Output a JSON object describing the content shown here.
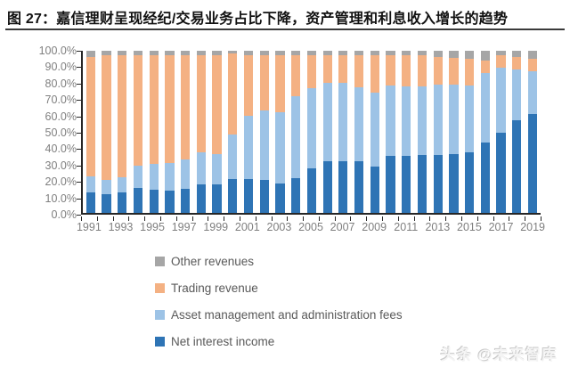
{
  "title": "图 27：嘉信理财呈现经纪/交易业务占比下降，资产管理和利息收入增长的趋势",
  "watermark": "头条 @未来智库",
  "colors": {
    "net_interest_income": "#2E74B5",
    "asset_management_fees": "#9DC3E6",
    "trading_revenue": "#F4B183",
    "other_revenues": "#A6A6A6",
    "axis": "#262626",
    "tick_label": "#7F7F7F",
    "legend_text": "#595959",
    "title_text": "#111111"
  },
  "chart_data": {
    "type": "bar",
    "variant": "100-percent-stacked-column",
    "title": "",
    "xlabel": "",
    "ylabel": "",
    "ylim": [
      0,
      100
    ],
    "grid": false,
    "legend_position": "bottom-left",
    "y_ticks": [
      "100.0%",
      "90.0%",
      "80.0%",
      "70.0%",
      "60.0%",
      "50.0%",
      "40.0%",
      "30.0%",
      "20.0%",
      "10.0%",
      "0.0%"
    ],
    "y_tick_values": [
      100,
      90,
      80,
      70,
      60,
      50,
      40,
      30,
      20,
      10,
      0
    ],
    "categories": [
      1991,
      1992,
      1993,
      1994,
      1995,
      1996,
      1997,
      1998,
      1999,
      2000,
      2001,
      2002,
      2003,
      2004,
      2005,
      2006,
      2007,
      2008,
      2009,
      2010,
      2011,
      2012,
      2013,
      2014,
      2015,
      2016,
      2017,
      2018,
      2019
    ],
    "x_tick_labels": [
      "1991",
      "1993",
      "1995",
      "1997",
      "1999",
      "2001",
      "2003",
      "2005",
      "2007",
      "2009",
      "2011",
      "2013",
      "2015",
      "2017",
      "2019"
    ],
    "series": [
      {
        "name": "Net interest income",
        "color": "#2E74B5",
        "values": [
          12.5,
          11.5,
          12.5,
          15.5,
          14.5,
          14,
          15,
          17.5,
          17.5,
          21,
          21,
          20.5,
          18,
          21.5,
          27.5,
          32,
          32,
          32,
          28.5,
          35,
          35,
          35.5,
          35.5,
          36.5,
          37.5,
          43.5,
          49.5,
          57,
          61
        ]
      },
      {
        "name": "Asset management and administration fees",
        "color": "#9DC3E6",
        "values": [
          10,
          9,
          9.5,
          13.5,
          15.5,
          17,
          18,
          20,
          19,
          27.5,
          39,
          42.5,
          44,
          50.5,
          49.5,
          48.5,
          48,
          45.5,
          45.5,
          43.5,
          43,
          42.5,
          43.5,
          42.5,
          41,
          43,
          40,
          31.5,
          26.5
        ]
      },
      {
        "name": "Trading revenue",
        "color": "#F4B183",
        "values": [
          73.5,
          76.5,
          75,
          68,
          67,
          66,
          64,
          59.5,
          60.5,
          50,
          37,
          34,
          35,
          25,
          20,
          16.5,
          17,
          19.5,
          23,
          19,
          19.5,
          19.5,
          17,
          16.5,
          16.5,
          7.5,
          8,
          7.5,
          7.5
        ]
      },
      {
        "name": "Other revenues",
        "color": "#A6A6A6",
        "values": [
          4,
          3,
          3,
          3,
          3,
          3,
          3,
          3,
          3,
          1.5,
          3,
          3,
          3,
          3,
          3,
          3,
          3,
          3,
          3,
          2.5,
          2.5,
          2.5,
          4,
          4.5,
          5,
          6,
          2.5,
          4,
          5
        ]
      }
    ],
    "legend_order": [
      "Other revenues",
      "Trading revenue",
      "Asset management and administration fees",
      "Net interest income"
    ]
  }
}
